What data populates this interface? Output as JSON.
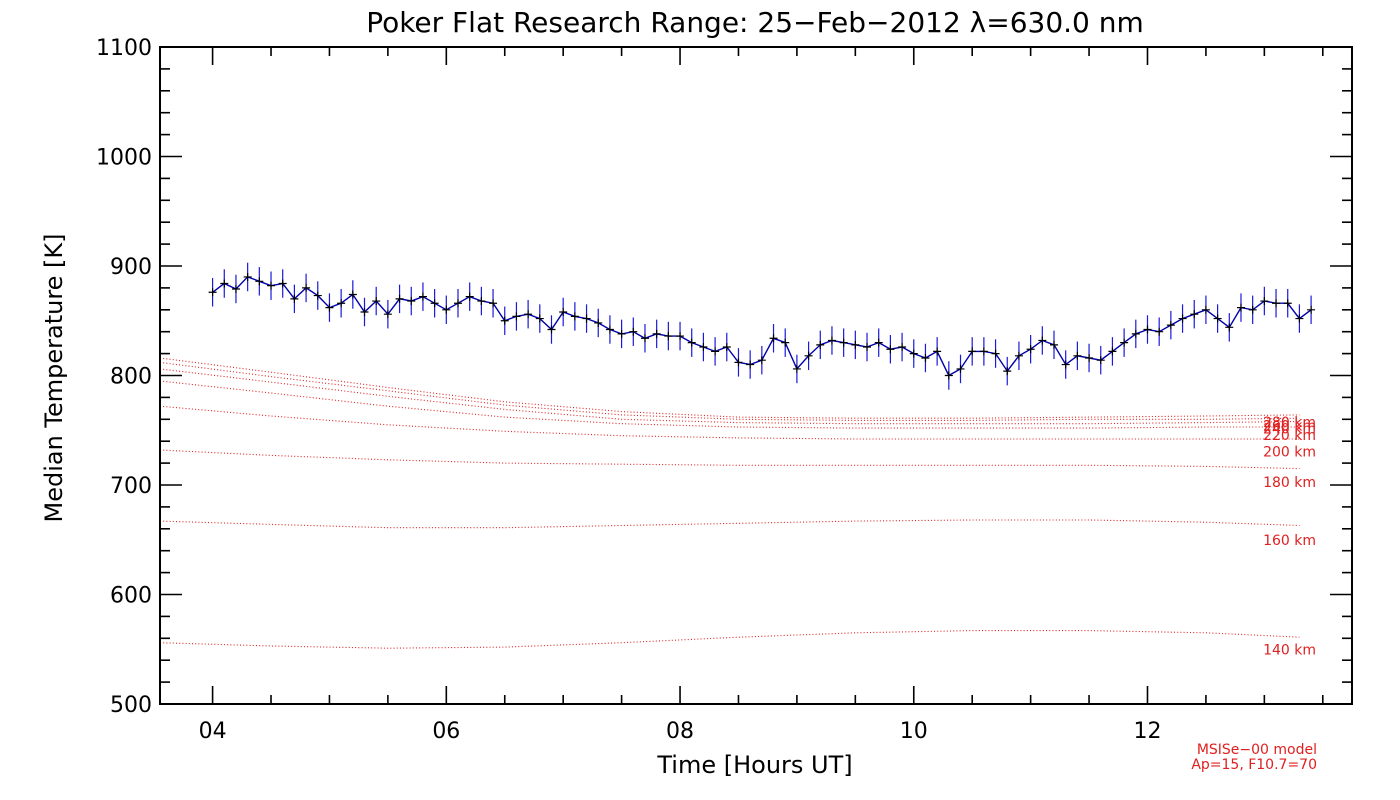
{
  "chart_data": {
    "type": "line",
    "title": "Poker Flat Research Range: 25−Feb−2012 λ=630.0 nm",
    "xlabel": "Time [Hours UT]",
    "ylabel": "Median Temperature [K]",
    "xlim": [
      3.55,
      13.75
    ],
    "ylim": [
      500,
      1100
    ],
    "x_ticks": [
      {
        "value": 4,
        "label": "04"
      },
      {
        "value": 6,
        "label": "06"
      },
      {
        "value": 8,
        "label": "08"
      },
      {
        "value": 10,
        "label": "10"
      },
      {
        "value": 12,
        "label": "12"
      }
    ],
    "y_ticks": [
      {
        "value": 500,
        "label": "500"
      },
      {
        "value": 600,
        "label": "600"
      },
      {
        "value": 700,
        "label": "700"
      },
      {
        "value": 800,
        "label": "800"
      },
      {
        "value": 900,
        "label": "900"
      },
      {
        "value": 1000,
        "label": "1000"
      },
      {
        "value": 1100,
        "label": "1100"
      }
    ],
    "grid": false,
    "colors": {
      "observed": "#0000aa",
      "observed_errbar": "#1a1adb",
      "model": "#e02020"
    },
    "observed": {
      "x": [
        4.0,
        4.1,
        4.2,
        4.3,
        4.4,
        4.5,
        4.6,
        4.7,
        4.8,
        4.9,
        5.0,
        5.1,
        5.2,
        5.3,
        5.4,
        5.5,
        5.6,
        5.7,
        5.8,
        5.9,
        6.0,
        6.1,
        6.2,
        6.3,
        6.4,
        6.5,
        6.6,
        6.7,
        6.8,
        6.9,
        7.0,
        7.1,
        7.2,
        7.3,
        7.4,
        7.5,
        7.6,
        7.7,
        7.8,
        7.9,
        8.0,
        8.1,
        8.2,
        8.3,
        8.4,
        8.5,
        8.6,
        8.7,
        8.8,
        8.9,
        9.0,
        9.1,
        9.2,
        9.3,
        9.4,
        9.5,
        9.6,
        9.7,
        9.8,
        9.9,
        10.0,
        10.1,
        10.2,
        10.3,
        10.4,
        10.5,
        10.6,
        10.7,
        10.8,
        10.9,
        11.0,
        11.1,
        11.2,
        11.3,
        11.4,
        11.5,
        11.6,
        11.7,
        11.8,
        11.9,
        12.0,
        12.1,
        12.2,
        12.3,
        12.4,
        12.5,
        12.6,
        12.7,
        12.8,
        12.9,
        13.0,
        13.1,
        13.2,
        13.3,
        13.4
      ],
      "y": [
        876,
        884,
        879,
        890,
        886,
        882,
        884,
        870,
        880,
        873,
        862,
        866,
        874,
        858,
        868,
        856,
        870,
        868,
        872,
        866,
        860,
        866,
        872,
        868,
        866,
        850,
        854,
        856,
        852,
        842,
        858,
        854,
        852,
        848,
        842,
        838,
        840,
        834,
        838,
        836,
        836,
        830,
        826,
        822,
        826,
        812,
        810,
        814,
        834,
        830,
        806,
        818,
        828,
        832,
        830,
        828,
        826,
        830,
        824,
        826,
        820,
        816,
        822,
        800,
        806,
        822,
        822,
        820,
        804,
        818,
        824,
        832,
        828,
        810,
        818,
        816,
        814,
        822,
        830,
        838,
        842,
        840,
        846,
        852,
        856,
        860,
        852,
        844,
        862,
        860,
        868,
        866,
        866,
        852,
        860
      ],
      "error": 13
    },
    "model_curves": [
      {
        "name": "140 km",
        "x": [
          3.55,
          4.5,
          5.5,
          6.5,
          7.5,
          8.5,
          9.5,
          10.5,
          11.5,
          12.5,
          13.3
        ],
        "y": [
          556,
          553,
          551,
          552,
          556,
          561,
          565,
          567,
          567,
          565,
          561
        ]
      },
      {
        "name": "160 km",
        "x": [
          3.55,
          4.5,
          5.5,
          6.5,
          7.5,
          8.5,
          9.5,
          10.5,
          11.5,
          12.5,
          13.3
        ],
        "y": [
          667,
          664,
          661,
          661,
          663,
          665,
          667,
          668,
          668,
          666,
          663
        ]
      },
      {
        "name": "180 km",
        "x": [
          3.55,
          4.5,
          5.5,
          6.5,
          7.5,
          8.5,
          9.5,
          10.5,
          11.5,
          12.5,
          13.3
        ],
        "y": [
          732,
          727,
          723,
          720,
          719,
          718,
          718,
          718,
          718,
          717,
          715
        ]
      },
      {
        "name": "200 km",
        "x": [
          3.55,
          4.5,
          5.5,
          6.5,
          7.5,
          8.5,
          9.5,
          10.5,
          11.5,
          12.5,
          13.3
        ],
        "y": [
          772,
          763,
          755,
          749,
          745,
          743,
          742,
          742,
          742,
          742,
          742
        ]
      },
      {
        "name": "220 km",
        "x": [
          3.55,
          4.5,
          5.5,
          6.5,
          7.5,
          8.5,
          9.5,
          10.5,
          11.5,
          12.5,
          13.3
        ],
        "y": [
          795,
          784,
          772,
          762,
          756,
          753,
          752,
          752,
          752,
          753,
          753
        ]
      },
      {
        "name": "240 km",
        "x": [
          3.55,
          4.5,
          5.5,
          6.5,
          7.5,
          8.5,
          9.5,
          10.5,
          11.5,
          12.5,
          13.3
        ],
        "y": [
          806,
          794,
          781,
          769,
          760,
          757,
          756,
          756,
          756,
          757,
          758
        ]
      },
      {
        "name": "260 km",
        "x": [
          3.55,
          4.5,
          5.5,
          6.5,
          7.5,
          8.5,
          9.5,
          10.5,
          11.5,
          12.5,
          13.3
        ],
        "y": [
          812,
          799,
          786,
          773,
          764,
          760,
          759,
          759,
          760,
          760,
          761
        ]
      },
      {
        "name": "280 km",
        "x": [
          3.55,
          4.5,
          5.5,
          6.5,
          7.5,
          8.5,
          9.5,
          10.5,
          11.5,
          12.5,
          13.3
        ],
        "y": [
          816,
          803,
          789,
          776,
          767,
          762,
          761,
          761,
          762,
          763,
          764
        ]
      }
    ],
    "model_line_labels": [
      {
        "text": "140 km",
        "y": 545
      },
      {
        "text": "160 km",
        "y": 645
      },
      {
        "text": "180 km",
        "y": 698
      },
      {
        "text": "200 km",
        "y": 726
      },
      {
        "text": "220 km",
        "y": 741
      },
      {
        "text": "240 km",
        "y": 747
      },
      {
        "text": "260 km",
        "y": 750
      },
      {
        "text": "280 km",
        "y": 753
      }
    ],
    "model_note": [
      "MSISe−00 model",
      "Ap=15, F10.7=70"
    ]
  }
}
